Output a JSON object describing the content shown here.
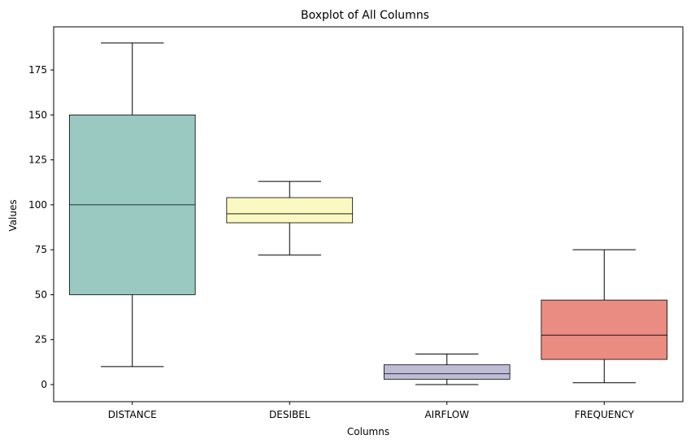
{
  "chart_data": {
    "type": "box",
    "title": "Boxplot of All Columns",
    "xlabel": "Columns",
    "ylabel": "Values",
    "ylim": [
      -9.5,
      199
    ],
    "yticks": [
      0,
      25,
      50,
      75,
      100,
      125,
      150,
      175
    ],
    "grid": false,
    "categories": [
      "DISTANCE",
      "DESIBEL",
      "AIRFLOW",
      "FREQUENCY"
    ],
    "boxes": [
      {
        "category": "DISTANCE",
        "whisker_low": 10,
        "q1": 50,
        "median": 100,
        "q3": 150,
        "whisker_high": 190,
        "color": "#99c9c1"
      },
      {
        "category": "DESIBEL",
        "whisker_low": 72,
        "q1": 90,
        "median": 95,
        "q3": 104,
        "whisker_high": 113,
        "color": "#f9f9c1"
      },
      {
        "category": "AIRFLOW",
        "whisker_low": 0,
        "q1": 3,
        "median": 6,
        "q3": 11,
        "whisker_high": 17,
        "color": "#bfbcd8"
      },
      {
        "category": "FREQUENCY",
        "whisker_low": 1,
        "q1": 14,
        "median": 27.5,
        "q3": 47,
        "whisker_high": 75,
        "color": "#eb8c82"
      }
    ]
  }
}
